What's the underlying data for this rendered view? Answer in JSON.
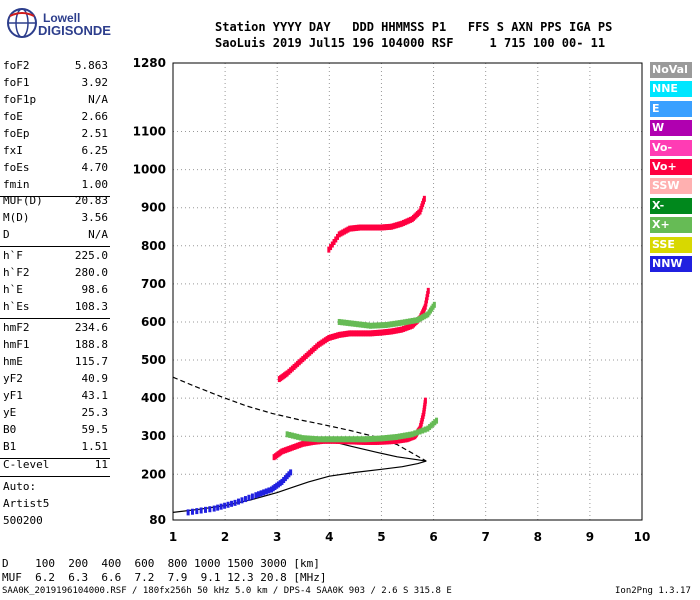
{
  "logo": {
    "line1": "Lowell",
    "line2": "DIGISONDE"
  },
  "header": {
    "row1": "Station YYYY DAY   DDD HHMMSS P1   FFS S AXN PPS IGA PS",
    "row2": "SaoLuis 2019 Jul15 196 104000 RSF     1 715 100 00- 11"
  },
  "params_group1": [
    {
      "name": "foF2",
      "value": "5.863"
    },
    {
      "name": "foF1",
      "value": "3.92"
    },
    {
      "name": "foF1p",
      "value": "N/A"
    },
    {
      "name": "foE",
      "value": "2.66"
    },
    {
      "name": "foEp",
      "value": "2.51"
    },
    {
      "name": "fxI",
      "value": "6.25"
    },
    {
      "name": "foEs",
      "value": "4.70"
    },
    {
      "name": "fmin",
      "value": "1.00"
    }
  ],
  "params_group2": [
    {
      "name": "MUF(D)",
      "value": "20.83"
    },
    {
      "name": "M(D)",
      "value": "3.56"
    },
    {
      "name": "D",
      "value": "N/A"
    }
  ],
  "params_group3": [
    {
      "name": "h`F",
      "value": "225.0"
    },
    {
      "name": "h`F2",
      "value": "280.0"
    },
    {
      "name": "h`E",
      "value": "98.6"
    },
    {
      "name": "h`Es",
      "value": "108.3"
    }
  ],
  "params_group4": [
    {
      "name": "hmF2",
      "value": "234.6"
    },
    {
      "name": "hmF1",
      "value": "188.8"
    },
    {
      "name": "hmE",
      "value": "115.7"
    },
    {
      "name": "yF2",
      "value": "40.9"
    },
    {
      "name": "yF1",
      "value": "43.1"
    },
    {
      "name": "yE",
      "value": "25.3"
    },
    {
      "name": "B0",
      "value": "59.5"
    },
    {
      "name": "B1",
      "value": "1.51"
    }
  ],
  "params_group5": [
    {
      "name": "C-level",
      "value": "11"
    }
  ],
  "scaling": {
    "line1": "Auto:",
    "line2": "Artist5",
    "line3": "500200"
  },
  "legend": [
    {
      "label": "NoVal",
      "color": "#9a9a9a"
    },
    {
      "label": "NNE",
      "color": "#00e6ff"
    },
    {
      "label": "E",
      "color": "#3aa0ff"
    },
    {
      "label": "W",
      "color": "#b000b0"
    },
    {
      "label": "Vo-",
      "color": "#ff3cb4"
    },
    {
      "label": "Vo+",
      "color": "#ff0040"
    },
    {
      "label": "SSW",
      "color": "#ffb0b0"
    },
    {
      "label": "X-",
      "color": "#00881c"
    },
    {
      "label": "X+",
      "color": "#66bb55"
    },
    {
      "label": "SSE",
      "color": "#d8d800"
    },
    {
      "label": "NNW",
      "color": "#2020e0"
    }
  ],
  "muf_table": {
    "row1": "D    100  200  400  600  800 1000 1500 3000 [km]",
    "row2": "MUF  6.2  6.3  6.6  7.2  7.9  9.1 12.3 20.8 [MHz]"
  },
  "footer": {
    "left": "SAA0K_2019196104000.RSF / 180fx256h 50 kHz 5.0 km / DPS-4 SAA0K 903 / 2.6 S 315.8 E",
    "right": "Ion2Png 1.3.17"
  },
  "chart_data": {
    "type": "scatter",
    "x_ticks": [
      1,
      2,
      3,
      4,
      5,
      6,
      7,
      8,
      9,
      10
    ],
    "y_ticks": [
      80,
      200,
      300,
      400,
      500,
      600,
      700,
      800,
      900,
      1000,
      1100,
      1280
    ],
    "xlim": [
      1,
      10
    ],
    "ylim": [
      80,
      1280
    ],
    "grid": true,
    "x_tick_labels": [
      "1",
      "2",
      "3",
      "4",
      "5",
      "6",
      "7",
      "8",
      "9",
      "10"
    ],
    "y_tick_labels": [
      "80",
      "200",
      "300",
      "400",
      "500",
      "600",
      "700",
      "800",
      "900",
      "1000",
      "1100",
      "1280"
    ],
    "series": [
      {
        "color": "#ff0040",
        "kind": "trace",
        "points": [
          [
            2.95,
            245
          ],
          [
            3.1,
            260
          ],
          [
            3.3,
            270
          ],
          [
            3.5,
            280
          ],
          [
            3.7,
            285
          ],
          [
            3.9,
            288
          ],
          [
            4.1,
            288
          ],
          [
            4.3,
            287
          ],
          [
            4.5,
            286
          ],
          [
            4.7,
            285
          ],
          [
            4.9,
            285
          ],
          [
            5.1,
            286
          ],
          [
            5.3,
            288
          ],
          [
            5.5,
            292
          ],
          [
            5.65,
            300
          ],
          [
            5.75,
            320
          ],
          [
            5.82,
            360
          ],
          [
            5.86,
            400
          ]
        ]
      },
      {
        "color": "#ff0040",
        "kind": "trace",
        "points": [
          [
            3.05,
            450
          ],
          [
            3.2,
            465
          ],
          [
            3.4,
            490
          ],
          [
            3.6,
            515
          ],
          [
            3.8,
            540
          ],
          [
            4.0,
            558
          ],
          [
            4.2,
            566
          ],
          [
            4.4,
            570
          ],
          [
            4.6,
            570
          ],
          [
            4.8,
            570
          ],
          [
            5.0,
            572
          ],
          [
            5.2,
            575
          ],
          [
            5.4,
            580
          ],
          [
            5.6,
            590
          ],
          [
            5.75,
            610
          ],
          [
            5.85,
            640
          ],
          [
            5.92,
            690
          ]
        ]
      },
      {
        "color": "#ff0040",
        "kind": "trace",
        "points": [
          [
            4.0,
            790
          ],
          [
            4.2,
            830
          ],
          [
            4.4,
            845
          ],
          [
            4.6,
            848
          ],
          [
            4.8,
            848
          ],
          [
            5.0,
            848
          ],
          [
            5.2,
            850
          ],
          [
            5.4,
            858
          ],
          [
            5.6,
            870
          ],
          [
            5.75,
            890
          ],
          [
            5.85,
            930
          ]
        ]
      },
      {
        "color": "#66bb55",
        "kind": "trace",
        "points": [
          [
            3.2,
            305
          ],
          [
            3.5,
            295
          ],
          [
            3.8,
            292
          ],
          [
            4.1,
            292
          ],
          [
            4.4,
            292
          ],
          [
            4.7,
            292
          ],
          [
            5.0,
            294
          ],
          [
            5.3,
            298
          ],
          [
            5.6,
            305
          ],
          [
            5.9,
            320
          ],
          [
            6.1,
            345
          ]
        ]
      },
      {
        "color": "#66bb55",
        "kind": "trace",
        "points": [
          [
            4.2,
            600
          ],
          [
            4.5,
            595
          ],
          [
            4.8,
            590
          ],
          [
            5.1,
            592
          ],
          [
            5.4,
            598
          ],
          [
            5.7,
            605
          ],
          [
            5.9,
            620
          ],
          [
            6.05,
            650
          ]
        ]
      },
      {
        "color": "#2020e0",
        "kind": "trace",
        "points": [
          [
            1.3,
            100
          ],
          [
            1.8,
            110
          ],
          [
            2.2,
            125
          ],
          [
            2.6,
            145
          ],
          [
            2.9,
            160
          ],
          [
            3.1,
            180
          ],
          [
            3.3,
            210
          ]
        ]
      }
    ],
    "curves": [
      {
        "style": "solid",
        "points": [
          [
            1.0,
            100
          ],
          [
            1.5,
            108
          ],
          [
            2.0,
            118
          ],
          [
            2.5,
            133
          ],
          [
            3.0,
            152
          ],
          [
            3.3,
            166
          ],
          [
            3.6,
            180
          ],
          [
            4.0,
            195
          ],
          [
            4.5,
            205
          ],
          [
            5.0,
            213
          ],
          [
            5.4,
            220
          ],
          [
            5.7,
            228
          ],
          [
            5.86,
            234.6
          ],
          [
            5.7,
            238
          ],
          [
            5.3,
            246
          ],
          [
            4.9,
            258
          ],
          [
            4.4,
            274
          ],
          [
            4.0,
            288
          ]
        ]
      },
      {
        "style": "dashed",
        "points": [
          [
            1.0,
            455
          ],
          [
            1.4,
            432
          ],
          [
            1.9,
            405
          ],
          [
            2.4,
            380
          ],
          [
            2.9,
            360
          ],
          [
            3.4,
            344
          ],
          [
            3.9,
            330
          ],
          [
            4.4,
            315
          ],
          [
            4.9,
            298
          ],
          [
            5.3,
            278
          ],
          [
            5.6,
            255
          ],
          [
            5.86,
            234.6
          ]
        ]
      }
    ]
  }
}
